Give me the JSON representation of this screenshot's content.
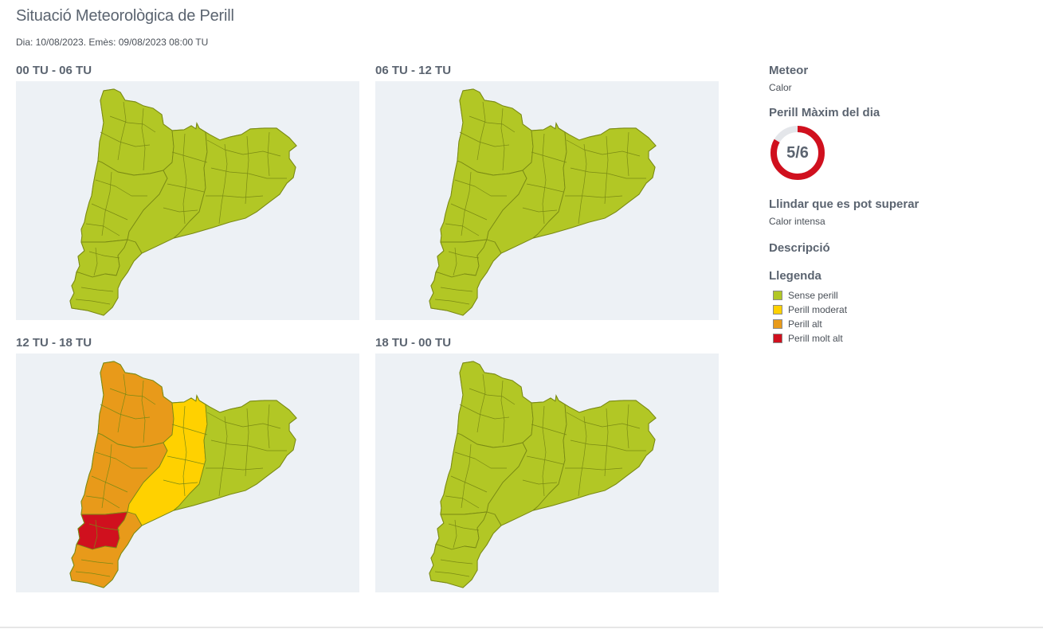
{
  "page": {
    "title": "Situació Meteorològica de Perill",
    "subtitle": "Dia: 10/08/2023. Emès: 09/08/2023 08:00 TU"
  },
  "colors": {
    "sense_perill": "#b2c725",
    "perill_moderat": "#ffd100",
    "perill_alt": "#e89a1a",
    "perill_molt_alt": "#d0101e",
    "border": "#7a8a14",
    "map_background": "#edf1f5",
    "gauge_track": "#e4e6ea"
  },
  "maps": [
    {
      "title": "00 TU - 06 TU",
      "regions": {
        "north": "sense_perill",
        "west": "sense_perill",
        "center": "sense_perill",
        "east": "sense_perill",
        "southwest": "sense_perill",
        "south": "sense_perill"
      }
    },
    {
      "title": "06 TU - 12 TU",
      "regions": {
        "north": "sense_perill",
        "west": "sense_perill",
        "center": "sense_perill",
        "east": "sense_perill",
        "southwest": "sense_perill",
        "south": "sense_perill"
      }
    },
    {
      "title": "12 TU - 18 TU",
      "regions": {
        "north": "perill_alt",
        "west": "perill_alt",
        "center": "perill_moderat",
        "east": "sense_perill",
        "southwest": "perill_molt_alt",
        "south": "perill_alt"
      }
    },
    {
      "title": "18 TU - 00 TU",
      "regions": {
        "north": "sense_perill",
        "west": "sense_perill",
        "center": "sense_perill",
        "east": "sense_perill",
        "southwest": "sense_perill",
        "south": "sense_perill"
      }
    }
  ],
  "side": {
    "meteor_label": "Meteor",
    "meteor_value": "Calor",
    "max_label": "Perill Màxim del dia",
    "max_level": 5,
    "max_total": 6,
    "max_text": "5/6",
    "threshold_label": "Llindar que es pot superar",
    "threshold_value": "Calor intensa",
    "description_label": "Descripció",
    "legend_label": "Llegenda",
    "legend": [
      {
        "label": "Sense perill",
        "color": "#b2c725"
      },
      {
        "label": "Perill moderat",
        "color": "#ffd100"
      },
      {
        "label": "Perill alt",
        "color": "#e89a1a"
      },
      {
        "label": "Perill molt alt",
        "color": "#d0101e"
      }
    ]
  }
}
